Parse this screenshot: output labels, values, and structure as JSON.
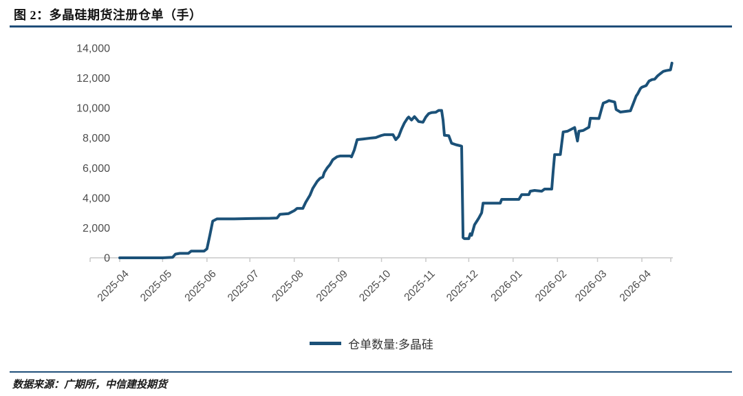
{
  "header": {
    "title": "图 2：多晶硅期货注册仓单（手）"
  },
  "legend": {
    "label": "仓单数量:多晶硅"
  },
  "footer": {
    "source": "数据来源：广期所，中信建投期货"
  },
  "colors": {
    "line": "#1B5178",
    "accent_rule": "#1F4E79",
    "axis_line": "#C9C9C9",
    "tick_text": "#4D4D4D"
  },
  "chart_data": {
    "type": "line",
    "title": "图 2：多晶硅期货注册仓单（手）",
    "xlabel": "",
    "ylabel": "",
    "grid": "off",
    "legend_position": "bottom-center",
    "ylim": [
      0,
      14000
    ],
    "x_start": "2025-04-01",
    "ytick_values": [
      0,
      2000,
      4000,
      6000,
      8000,
      10000,
      12000,
      14000
    ],
    "ytick_labels": [
      "0",
      "2,000",
      "4,000",
      "6,000",
      "8,000",
      "10,000",
      "12,000",
      "14,000"
    ],
    "xtick_labels": [
      "2025-04",
      "2025-05",
      "2025-06",
      "2025-07",
      "2025-08",
      "2025-09",
      "2025-10",
      "2025-11",
      "2025-12",
      "2026-01",
      "2026-02",
      "2026-03",
      "2026-04"
    ],
    "series": [
      {
        "name": "仓单数量:多晶硅",
        "color": "#1B5178",
        "points": [
          [
            "2025-04-01",
            0
          ],
          [
            "2025-04-20",
            0
          ],
          [
            "2025-05-01",
            0
          ],
          [
            "2025-05-08",
            30
          ],
          [
            "2025-05-10",
            250
          ],
          [
            "2025-05-13",
            300
          ],
          [
            "2025-05-19",
            300
          ],
          [
            "2025-05-21",
            450
          ],
          [
            "2025-05-30",
            450
          ],
          [
            "2025-06-01",
            600
          ],
          [
            "2025-06-03",
            1500
          ],
          [
            "2025-06-05",
            2450
          ],
          [
            "2025-06-08",
            2600
          ],
          [
            "2025-06-20",
            2600
          ],
          [
            "2025-07-01",
            2620
          ],
          [
            "2025-07-15",
            2640
          ],
          [
            "2025-07-20",
            2660
          ],
          [
            "2025-07-22",
            2900
          ],
          [
            "2025-07-28",
            2950
          ],
          [
            "2025-08-01",
            3150
          ],
          [
            "2025-08-03",
            3300
          ],
          [
            "2025-08-07",
            3300
          ],
          [
            "2025-08-09",
            3700
          ],
          [
            "2025-08-12",
            4180
          ],
          [
            "2025-08-14",
            4640
          ],
          [
            "2025-08-17",
            5100
          ],
          [
            "2025-08-19",
            5300
          ],
          [
            "2025-08-21",
            5400
          ],
          [
            "2025-08-22",
            5700
          ],
          [
            "2025-08-24",
            6000
          ],
          [
            "2025-08-26",
            6230
          ],
          [
            "2025-08-28",
            6550
          ],
          [
            "2025-08-31",
            6750
          ],
          [
            "2025-09-02",
            6800
          ],
          [
            "2025-09-09",
            6800
          ],
          [
            "2025-09-10",
            6740
          ],
          [
            "2025-09-12",
            7200
          ],
          [
            "2025-09-14",
            7890
          ],
          [
            "2025-09-18",
            7930
          ],
          [
            "2025-09-24",
            8000
          ],
          [
            "2025-09-27",
            8030
          ],
          [
            "2025-09-29",
            8100
          ],
          [
            "2025-10-01",
            8170
          ],
          [
            "2025-10-03",
            8220
          ],
          [
            "2025-10-09",
            8220
          ],
          [
            "2025-10-11",
            7890
          ],
          [
            "2025-10-13",
            8100
          ],
          [
            "2025-10-15",
            8600
          ],
          [
            "2025-10-17",
            9000
          ],
          [
            "2025-10-19",
            9300
          ],
          [
            "2025-10-20",
            9400
          ],
          [
            "2025-10-22",
            9200
          ],
          [
            "2025-10-24",
            9430
          ],
          [
            "2025-10-27",
            9100
          ],
          [
            "2025-10-30",
            9050
          ],
          [
            "2025-11-01",
            9400
          ],
          [
            "2025-11-03",
            9630
          ],
          [
            "2025-11-05",
            9700
          ],
          [
            "2025-11-08",
            9720
          ],
          [
            "2025-11-10",
            9840
          ],
          [
            "2025-11-12",
            9840
          ],
          [
            "2025-11-13",
            9200
          ],
          [
            "2025-11-14",
            8180
          ],
          [
            "2025-11-17",
            8150
          ],
          [
            "2025-11-19",
            7650
          ],
          [
            "2025-11-22",
            7550
          ],
          [
            "2025-11-25",
            7480
          ],
          [
            "2025-11-26",
            7450
          ],
          [
            "2025-11-27",
            1350
          ],
          [
            "2025-11-28",
            1280
          ],
          [
            "2025-12-01",
            1280
          ],
          [
            "2025-12-02",
            1600
          ],
          [
            "2025-12-03",
            1500
          ],
          [
            "2025-12-05",
            2200
          ],
          [
            "2025-12-07",
            2500
          ],
          [
            "2025-12-08",
            2650
          ],
          [
            "2025-12-10",
            3000
          ],
          [
            "2025-12-11",
            3650
          ],
          [
            "2025-12-23",
            3650
          ],
          [
            "2025-12-24",
            3900
          ],
          [
            "2026-01-05",
            3900
          ],
          [
            "2026-01-07",
            4220
          ],
          [
            "2026-01-12",
            4220
          ],
          [
            "2026-01-13",
            4450
          ],
          [
            "2026-01-16",
            4500
          ],
          [
            "2026-01-21",
            4450
          ],
          [
            "2026-01-23",
            4590
          ],
          [
            "2026-01-28",
            4590
          ],
          [
            "2026-01-29",
            5800
          ],
          [
            "2026-01-30",
            6890
          ],
          [
            "2026-02-03",
            6900
          ],
          [
            "2026-02-05",
            8400
          ],
          [
            "2026-02-08",
            8450
          ],
          [
            "2026-02-13",
            8700
          ],
          [
            "2026-02-15",
            7800
          ],
          [
            "2026-02-16",
            8450
          ],
          [
            "2026-02-19",
            8500
          ],
          [
            "2026-02-23",
            8720
          ],
          [
            "2026-02-24",
            9320
          ],
          [
            "2026-03-02",
            9300
          ],
          [
            "2026-03-04",
            10000
          ],
          [
            "2026-03-05",
            10330
          ],
          [
            "2026-03-07",
            10400
          ],
          [
            "2026-03-09",
            10500
          ],
          [
            "2026-03-13",
            10400
          ],
          [
            "2026-03-14",
            9900
          ],
          [
            "2026-03-17",
            9730
          ],
          [
            "2026-03-24",
            9820
          ],
          [
            "2026-03-26",
            10300
          ],
          [
            "2026-03-28",
            10800
          ],
          [
            "2026-03-29",
            10940
          ],
          [
            "2026-03-31",
            11300
          ],
          [
            "2026-04-01",
            11390
          ],
          [
            "2026-04-04",
            11500
          ],
          [
            "2026-04-06",
            11800
          ],
          [
            "2026-04-08",
            11900
          ],
          [
            "2026-04-10",
            11930
          ],
          [
            "2026-04-12",
            12150
          ],
          [
            "2026-04-14",
            12300
          ],
          [
            "2026-04-16",
            12450
          ],
          [
            "2026-04-18",
            12500
          ],
          [
            "2026-04-21",
            12550
          ],
          [
            "2026-04-22",
            13000
          ]
        ]
      }
    ]
  }
}
